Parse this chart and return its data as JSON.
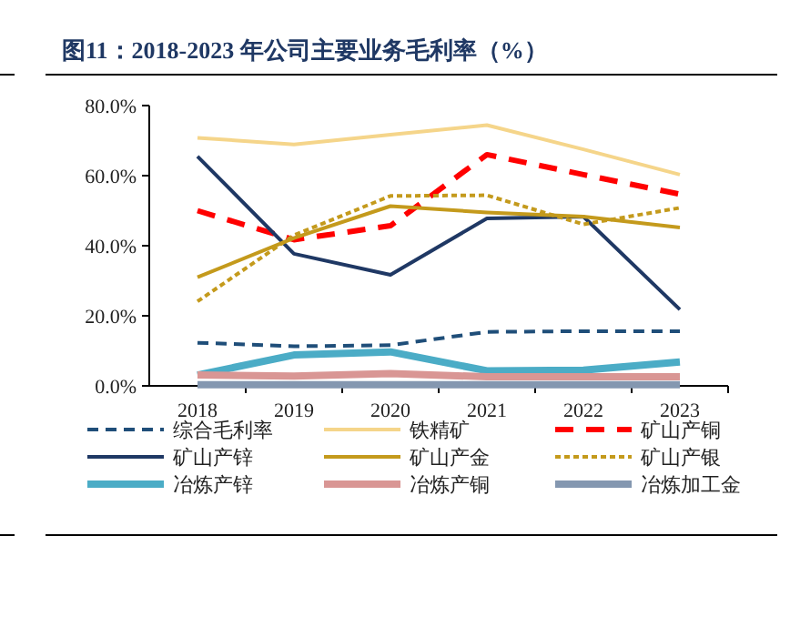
{
  "chart_data": {
    "type": "line",
    "title": "图11：2018-2023 年公司主要业务毛利率（%）",
    "categories": [
      "2018",
      "2019",
      "2020",
      "2021",
      "2022",
      "2023"
    ],
    "ylim": [
      0,
      80
    ],
    "yticks": [
      {
        "value": 0,
        "label": "0.0%"
      },
      {
        "value": 20,
        "label": "20.0%"
      },
      {
        "value": 40,
        "label": "40.0%"
      },
      {
        "value": 60,
        "label": "60.0%"
      },
      {
        "value": 80,
        "label": "80.0%"
      }
    ],
    "grid": false,
    "legend": "bottom",
    "marker": "none",
    "series": [
      {
        "name": "综合毛利率",
        "color": "#1f4e79",
        "line_style": "dashed",
        "values": [
          12.3,
          11.3,
          11.6,
          15.4,
          15.6,
          15.6
        ]
      },
      {
        "name": "铁精矿",
        "color": "#f5d58a",
        "line_style": "solid",
        "values": [
          70.8,
          68.9,
          71.7,
          74.4,
          67.5,
          60.3
        ]
      },
      {
        "name": "矿山产铜",
        "color": "#ff0000",
        "line_style": "dashed",
        "values": [
          50.0,
          41.7,
          45.7,
          66.0,
          60.3,
          54.7
        ]
      },
      {
        "name": "矿山产锌",
        "color": "#1f3864",
        "line_style": "solid",
        "values": [
          65.5,
          37.7,
          31.7,
          47.8,
          48.3,
          21.8
        ]
      },
      {
        "name": "矿山产金",
        "color": "#c49a1c",
        "line_style": "solid",
        "values": [
          31.0,
          42.2,
          51.3,
          49.5,
          48.3,
          45.2
        ]
      },
      {
        "name": "矿山产银",
        "color": "#c49a1c",
        "line_style": "dotted",
        "values": [
          24.1,
          43.0,
          54.2,
          54.4,
          46.1,
          50.8
        ]
      },
      {
        "name": "冶炼产锌",
        "color": "#4bacc6",
        "line_style": "solid",
        "values": [
          3.1,
          8.8,
          9.7,
          4.3,
          4.5,
          6.8
        ]
      },
      {
        "name": "冶炼产铜",
        "color": "#d99694",
        "line_style": "solid",
        "values": [
          3.1,
          2.8,
          3.5,
          2.6,
          2.6,
          2.6
        ]
      },
      {
        "name": "冶炼加工金",
        "color": "#8497b0",
        "line_style": "solid",
        "values": [
          0.3,
          0.3,
          0.3,
          0.3,
          0.3,
          0.3
        ]
      }
    ]
  }
}
